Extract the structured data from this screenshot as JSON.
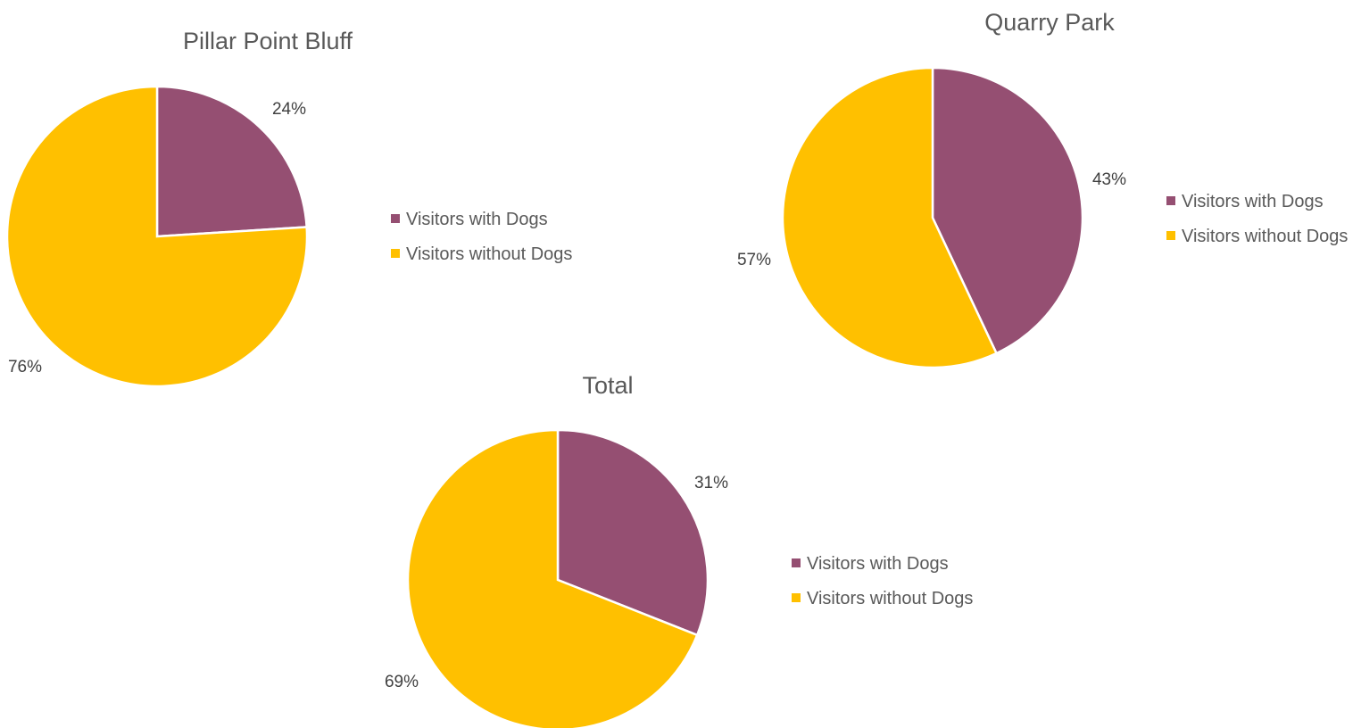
{
  "chart_data": [
    {
      "type": "pie",
      "title": "Pillar Point Bluff",
      "categories": [
        "Visitors with Dogs",
        "Visitors without Dogs"
      ],
      "values": [
        24,
        76
      ],
      "data_labels": [
        "24%",
        "76%"
      ],
      "colors": [
        "#954F72",
        "#FFC000"
      ],
      "legend": [
        "Visitors with Dogs",
        "Visitors without Dogs"
      ],
      "legend_position": "right"
    },
    {
      "type": "pie",
      "title": "Quarry Park",
      "categories": [
        "Visitors with Dogs",
        "Visitors without Dogs"
      ],
      "values": [
        43,
        57
      ],
      "data_labels": [
        "43%",
        "57%"
      ],
      "colors": [
        "#954F72",
        "#FFC000"
      ],
      "legend": [
        "Visitors with Dogs",
        "Visitors without Dogs"
      ],
      "legend_position": "right"
    },
    {
      "type": "pie",
      "title": "Total",
      "categories": [
        "Visitors with Dogs",
        "Visitors without Dogs"
      ],
      "values": [
        31,
        69
      ],
      "data_labels": [
        "31%",
        "69%"
      ],
      "colors": [
        "#954F72",
        "#FFC000"
      ],
      "legend": [
        "Visitors with Dogs",
        "Visitors without Dogs"
      ],
      "legend_position": "right"
    }
  ]
}
